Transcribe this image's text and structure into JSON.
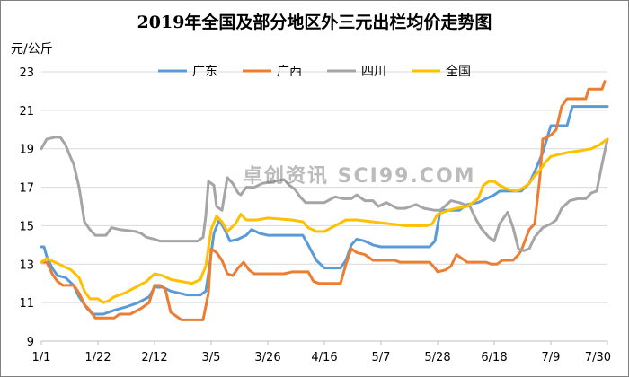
{
  "chart_data": {
    "type": "line",
    "title": "2019年全国及部分地区外三元出栏均价走势图",
    "ylabel": "元/公斤",
    "xlabel": "",
    "ylim": [
      9,
      23
    ],
    "yticks": [
      9,
      11,
      13,
      15,
      17,
      19,
      21,
      23
    ],
    "xlim": [
      "1/1",
      "7/30"
    ],
    "xticks": [
      "1/1",
      "1/22",
      "2/12",
      "3/5",
      "3/26",
      "4/16",
      "5/7",
      "5/28",
      "6/18",
      "7/9",
      "7/30"
    ],
    "grid": true,
    "legend_position": "top",
    "watermark": "卓创资讯 SCI99.COM",
    "series": [
      {
        "name": "广东",
        "color": "#5b9bd5",
        "points": [
          [
            "1/1",
            13.9
          ],
          [
            "1/2",
            13.9
          ],
          [
            "1/3",
            13.4
          ],
          [
            "1/5",
            12.8
          ],
          [
            "1/7",
            12.4
          ],
          [
            "1/10",
            12.3
          ],
          [
            "1/13",
            11.9
          ],
          [
            "1/15",
            11.3
          ],
          [
            "1/18",
            10.7
          ],
          [
            "1/20",
            10.4
          ],
          [
            "1/24",
            10.4
          ],
          [
            "1/28",
            10.6
          ],
          [
            "2/2",
            10.8
          ],
          [
            "2/6",
            11.0
          ],
          [
            "2/10",
            11.3
          ],
          [
            "2/12",
            11.8
          ],
          [
            "2/15",
            11.8
          ],
          [
            "2/18",
            11.6
          ],
          [
            "2/21",
            11.5
          ],
          [
            "2/24",
            11.4
          ],
          [
            "3/1",
            11.4
          ],
          [
            "3/3",
            11.6
          ],
          [
            "3/4",
            12.5
          ],
          [
            "3/6",
            14.6
          ],
          [
            "3/8",
            15.3
          ],
          [
            "3/10",
            14.8
          ],
          [
            "3/12",
            14.2
          ],
          [
            "3/15",
            14.3
          ],
          [
            "3/18",
            14.5
          ],
          [
            "3/20",
            14.8
          ],
          [
            "3/23",
            14.6
          ],
          [
            "3/26",
            14.5
          ],
          [
            "4/8",
            14.5
          ],
          [
            "4/10",
            14.0
          ],
          [
            "4/13",
            13.2
          ],
          [
            "4/16",
            12.8
          ],
          [
            "4/22",
            12.8
          ],
          [
            "4/24",
            13.2
          ],
          [
            "4/26",
            14.0
          ],
          [
            "4/28",
            14.3
          ],
          [
            "5/1",
            14.2
          ],
          [
            "5/4",
            14.0
          ],
          [
            "5/7",
            13.9
          ],
          [
            "5/25",
            13.9
          ],
          [
            "5/27",
            14.2
          ],
          [
            "5/29",
            15.8
          ],
          [
            "6/5",
            15.8
          ],
          [
            "6/8",
            16.1
          ],
          [
            "6/12",
            16.2
          ],
          [
            "6/15",
            16.4
          ],
          [
            "6/18",
            16.6
          ],
          [
            "6/20",
            16.8
          ],
          [
            "6/28",
            16.8
          ],
          [
            "7/1",
            17.2
          ],
          [
            "7/3",
            17.8
          ],
          [
            "7/6",
            18.8
          ],
          [
            "7/9",
            20.2
          ],
          [
            "7/15",
            20.2
          ],
          [
            "7/17",
            21.2
          ],
          [
            "7/30",
            21.2
          ]
        ]
      },
      {
        "name": "广西",
        "color": "#ed7d31",
        "points": [
          [
            "1/1",
            13.1
          ],
          [
            "1/3",
            13.1
          ],
          [
            "1/5",
            12.5
          ],
          [
            "1/7",
            12.1
          ],
          [
            "1/9",
            11.9
          ],
          [
            "1/13",
            11.9
          ],
          [
            "1/15",
            11.5
          ],
          [
            "1/17",
            10.9
          ],
          [
            "1/19",
            10.6
          ],
          [
            "1/21",
            10.2
          ],
          [
            "1/28",
            10.2
          ],
          [
            "1/30",
            10.4
          ],
          [
            "2/3",
            10.4
          ],
          [
            "2/7",
            10.7
          ],
          [
            "2/10",
            11.0
          ],
          [
            "2/12",
            11.9
          ],
          [
            "2/14",
            11.9
          ],
          [
            "2/16",
            11.7
          ],
          [
            "2/18",
            10.5
          ],
          [
            "2/20",
            10.3
          ],
          [
            "2/22",
            10.1
          ],
          [
            "3/2",
            10.1
          ],
          [
            "3/4",
            11.5
          ],
          [
            "3/5",
            13.8
          ],
          [
            "3/7",
            13.6
          ],
          [
            "3/9",
            13.2
          ],
          [
            "3/11",
            12.5
          ],
          [
            "3/13",
            12.4
          ],
          [
            "3/15",
            12.8
          ],
          [
            "3/17",
            13.1
          ],
          [
            "3/19",
            12.7
          ],
          [
            "3/21",
            12.5
          ],
          [
            "4/1",
            12.5
          ],
          [
            "4/4",
            12.6
          ],
          [
            "4/10",
            12.6
          ],
          [
            "4/12",
            12.1
          ],
          [
            "4/14",
            12.0
          ],
          [
            "4/22",
            12.0
          ],
          [
            "4/24",
            13.0
          ],
          [
            "4/26",
            13.8
          ],
          [
            "4/28",
            13.6
          ],
          [
            "5/1",
            13.5
          ],
          [
            "5/4",
            13.2
          ],
          [
            "5/7",
            13.2
          ],
          [
            "5/12",
            13.2
          ],
          [
            "5/14",
            13.1
          ],
          [
            "5/25",
            13.1
          ],
          [
            "5/27",
            12.8
          ],
          [
            "5/28",
            12.6
          ],
          [
            "5/31",
            12.7
          ],
          [
            "6/2",
            12.9
          ],
          [
            "6/4",
            13.5
          ],
          [
            "6/6",
            13.3
          ],
          [
            "6/8",
            13.1
          ],
          [
            "6/15",
            13.1
          ],
          [
            "6/17",
            13.0
          ],
          [
            "6/19",
            13.0
          ],
          [
            "6/21",
            13.2
          ],
          [
            "6/25",
            13.2
          ],
          [
            "6/27",
            13.5
          ],
          [
            "6/28",
            13.7
          ],
          [
            "7/1",
            14.8
          ],
          [
            "7/3",
            15.1
          ],
          [
            "7/5",
            17.6
          ],
          [
            "7/6",
            19.5
          ],
          [
            "7/9",
            19.7
          ],
          [
            "7/11",
            20.0
          ],
          [
            "7/13",
            21.2
          ],
          [
            "7/15",
            21.6
          ],
          [
            "7/22",
            21.6
          ],
          [
            "7/23",
            22.1
          ],
          [
            "7/28",
            22.1
          ],
          [
            "7/29",
            22.5
          ]
        ]
      },
      {
        "name": "四川",
        "color": "#a5a5a5",
        "points": [
          [
            "1/1",
            19.0
          ],
          [
            "1/3",
            19.5
          ],
          [
            "1/6",
            19.6
          ],
          [
            "1/8",
            19.6
          ],
          [
            "1/10",
            19.2
          ],
          [
            "1/12",
            18.5
          ],
          [
            "1/13",
            18.2
          ],
          [
            "1/15",
            17.0
          ],
          [
            "1/17",
            15.2
          ],
          [
            "1/19",
            14.8
          ],
          [
            "1/21",
            14.5
          ],
          [
            "1/25",
            14.5
          ],
          [
            "1/27",
            14.9
          ],
          [
            "1/30",
            14.8
          ],
          [
            "2/5",
            14.7
          ],
          [
            "2/7",
            14.6
          ],
          [
            "2/9",
            14.4
          ],
          [
            "2/12",
            14.3
          ],
          [
            "2/14",
            14.2
          ],
          [
            "2/28",
            14.2
          ],
          [
            "3/2",
            14.4
          ],
          [
            "3/3",
            15.5
          ],
          [
            "3/4",
            17.3
          ],
          [
            "3/6",
            17.1
          ],
          [
            "3/7",
            16.0
          ],
          [
            "3/9",
            15.8
          ],
          [
            "3/11",
            17.5
          ],
          [
            "3/13",
            17.2
          ],
          [
            "3/15",
            16.7
          ],
          [
            "3/16",
            16.6
          ],
          [
            "3/18",
            17.0
          ],
          [
            "3/21",
            17.0
          ],
          [
            "3/24",
            17.2
          ],
          [
            "3/28",
            17.3
          ],
          [
            "4/1",
            17.4
          ],
          [
            "4/3",
            17.1
          ],
          [
            "4/5",
            16.9
          ],
          [
            "4/7",
            16.5
          ],
          [
            "4/9",
            16.2
          ],
          [
            "4/16",
            16.2
          ],
          [
            "4/20",
            16.5
          ],
          [
            "4/23",
            16.4
          ],
          [
            "4/26",
            16.4
          ],
          [
            "4/28",
            16.6
          ],
          [
            "5/1",
            16.3
          ],
          [
            "5/4",
            16.3
          ],
          [
            "5/6",
            16.0
          ],
          [
            "5/9",
            16.2
          ],
          [
            "5/13",
            15.9
          ],
          [
            "5/16",
            15.9
          ],
          [
            "5/20",
            16.1
          ],
          [
            "5/23",
            15.9
          ],
          [
            "5/27",
            15.8
          ],
          [
            "5/29",
            15.8
          ],
          [
            "6/2",
            16.3
          ],
          [
            "6/5",
            16.2
          ],
          [
            "6/9",
            16.0
          ],
          [
            "6/11",
            15.4
          ],
          [
            "6/13",
            14.9
          ],
          [
            "6/16",
            14.4
          ],
          [
            "6/18",
            14.2
          ],
          [
            "6/20",
            15.1
          ],
          [
            "6/23",
            15.7
          ],
          [
            "6/25",
            14.9
          ],
          [
            "6/27",
            13.8
          ],
          [
            "6/29",
            13.7
          ],
          [
            "7/1",
            13.8
          ],
          [
            "7/3",
            14.4
          ],
          [
            "7/6",
            14.9
          ],
          [
            "7/9",
            15.1
          ],
          [
            "7/11",
            15.3
          ],
          [
            "7/13",
            15.9
          ],
          [
            "7/16",
            16.3
          ],
          [
            "7/19",
            16.4
          ],
          [
            "7/22",
            16.4
          ],
          [
            "7/24",
            16.7
          ],
          [
            "7/26",
            16.8
          ],
          [
            "7/28",
            18.2
          ],
          [
            "7/30",
            19.5
          ]
        ]
      },
      {
        "name": "全国",
        "color": "#ffc000",
        "points": [
          [
            "1/1",
            13.1
          ],
          [
            "1/3",
            13.3
          ],
          [
            "1/6",
            13.1
          ],
          [
            "1/9",
            12.9
          ],
          [
            "1/12",
            12.7
          ],
          [
            "1/15",
            12.3
          ],
          [
            "1/17",
            11.6
          ],
          [
            "1/19",
            11.2
          ],
          [
            "1/22",
            11.2
          ],
          [
            "1/24",
            11.0
          ],
          [
            "1/26",
            11.1
          ],
          [
            "1/28",
            11.3
          ],
          [
            "2/1",
            11.5
          ],
          [
            "2/5",
            11.8
          ],
          [
            "2/9",
            12.1
          ],
          [
            "2/12",
            12.5
          ],
          [
            "2/15",
            12.4
          ],
          [
            "2/18",
            12.2
          ],
          [
            "2/22",
            12.1
          ],
          [
            "2/26",
            12.0
          ],
          [
            "3/1",
            12.2
          ],
          [
            "3/3",
            12.9
          ],
          [
            "3/5",
            14.8
          ],
          [
            "3/7",
            15.5
          ],
          [
            "3/9",
            15.2
          ],
          [
            "3/11",
            14.7
          ],
          [
            "3/14",
            15.1
          ],
          [
            "3/16",
            15.6
          ],
          [
            "3/18",
            15.3
          ],
          [
            "3/22",
            15.3
          ],
          [
            "3/26",
            15.4
          ],
          [
            "4/4",
            15.3
          ],
          [
            "4/8",
            15.2
          ],
          [
            "4/10",
            14.9
          ],
          [
            "4/13",
            14.7
          ],
          [
            "4/16",
            14.7
          ],
          [
            "4/20",
            15.0
          ],
          [
            "4/24",
            15.3
          ],
          [
            "4/28",
            15.3
          ],
          [
            "5/4",
            15.2
          ],
          [
            "5/10",
            15.1
          ],
          [
            "5/16",
            15.0
          ],
          [
            "5/24",
            15.0
          ],
          [
            "5/26",
            15.1
          ],
          [
            "5/28",
            15.6
          ],
          [
            "6/1",
            15.8
          ],
          [
            "6/4",
            15.9
          ],
          [
            "6/8",
            16.0
          ],
          [
            "6/12",
            16.4
          ],
          [
            "6/14",
            17.1
          ],
          [
            "6/16",
            17.3
          ],
          [
            "6/18",
            17.3
          ],
          [
            "6/20",
            17.1
          ],
          [
            "6/23",
            16.9
          ],
          [
            "6/26",
            16.8
          ],
          [
            "6/28",
            16.9
          ],
          [
            "7/1",
            17.2
          ],
          [
            "7/3",
            17.6
          ],
          [
            "7/5",
            17.9
          ],
          [
            "7/7",
            18.3
          ],
          [
            "7/9",
            18.6
          ],
          [
            "7/12",
            18.7
          ],
          [
            "7/15",
            18.8
          ],
          [
            "7/20",
            18.9
          ],
          [
            "7/24",
            19.0
          ],
          [
            "7/27",
            19.2
          ],
          [
            "7/30",
            19.5
          ]
        ]
      }
    ]
  }
}
